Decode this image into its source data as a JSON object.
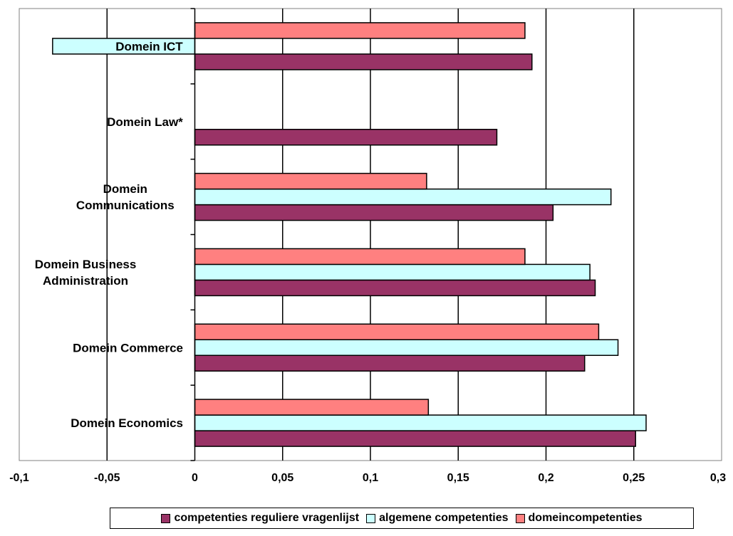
{
  "chart_data": {
    "type": "bar",
    "orientation": "horizontal",
    "categories": [
      "Domein Economics",
      "Domein Commerce",
      "Domein Business Administration",
      "Domein Communications",
      "Domein Law*",
      "Domein ICT"
    ],
    "series": [
      {
        "name": "competenties reguliere vragenlijst",
        "color": "#993366",
        "values": [
          0.251,
          0.222,
          0.228,
          0.204,
          0.172,
          0.192
        ]
      },
      {
        "name": "algemene competenties",
        "color": "#ccffff",
        "values": [
          0.257,
          0.241,
          0.225,
          0.237,
          null,
          -0.081
        ]
      },
      {
        "name": "domeincompetenties",
        "color": "#ff8080",
        "values": [
          0.133,
          0.23,
          0.188,
          0.132,
          null,
          0.188
        ]
      }
    ],
    "xlim": [
      -0.1,
      0.3
    ],
    "xticks": [
      -0.1,
      -0.05,
      0,
      0.05,
      0.1,
      0.15,
      0.2,
      0.25,
      0.3
    ],
    "xtick_labels": [
      "-0,1",
      "-0,05",
      "0",
      "0,05",
      "0,1",
      "0,15",
      "0,2",
      "0,25",
      "0,3"
    ],
    "grid": "vertical",
    "legend_position": "bottom",
    "title": "",
    "xlabel": "",
    "ylabel": ""
  }
}
